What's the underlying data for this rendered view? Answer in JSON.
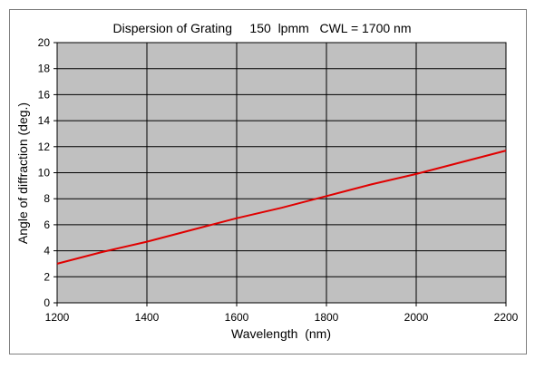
{
  "chart_data": {
    "type": "line",
    "title": "Dispersion of Grating     150  lpmm   CWL = 1700 nm",
    "xlabel": "Wavelength  (nm)",
    "ylabel": "Angle of diffraction (deg.)",
    "xlim": [
      1200,
      2200
    ],
    "ylim": [
      0,
      20
    ],
    "xticks": [
      "1200",
      "1400",
      "1600",
      "1800",
      "2000",
      "2200"
    ],
    "yticks": [
      "0",
      "2",
      "4",
      "6",
      "8",
      "10",
      "12",
      "14",
      "16",
      "18",
      "20"
    ],
    "grid": true,
    "legend": "none",
    "series": [
      {
        "x": [
          1200,
          1300,
          1400,
          1500,
          1600,
          1700,
          1800,
          1900,
          2000,
          2100,
          2200
        ],
        "y": [
          3.0,
          3.9,
          4.7,
          5.6,
          6.5,
          7.3,
          8.2,
          9.1,
          9.9,
          10.8,
          11.7
        ]
      }
    ],
    "colors": {
      "plot_bg": "#c0c0c0",
      "line": "#e00000",
      "grid": "#000000"
    }
  }
}
